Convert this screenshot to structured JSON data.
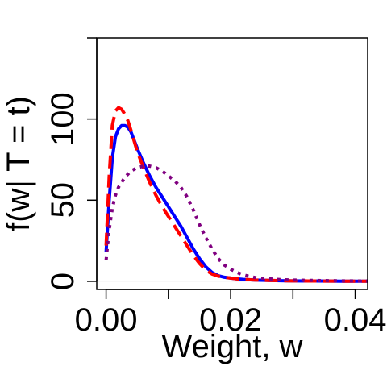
{
  "chart_data": {
    "type": "line",
    "xlabel": "Weight, w",
    "ylabel": "f(w| T = t)",
    "xlim": [
      -0.0015,
      0.042
    ],
    "ylim": [
      -5,
      150
    ],
    "x_ticks": [
      0.0,
      0.01,
      0.02,
      0.03,
      0.04
    ],
    "x_tick_labels": [
      "0.00",
      "",
      "0.02",
      "",
      "0.04"
    ],
    "y_ticks": [
      0,
      50,
      100,
      150
    ],
    "y_tick_labels": [
      "0",
      "50",
      "100",
      ""
    ],
    "grid": false,
    "legend": "none",
    "series": [
      {
        "color": "#0000ff",
        "dash": "solid",
        "x": [
          0.0,
          0.0005,
          0.001,
          0.0015,
          0.002,
          0.0025,
          0.003,
          0.0035,
          0.004,
          0.005,
          0.006,
          0.007,
          0.008,
          0.009,
          0.01,
          0.011,
          0.012,
          0.013,
          0.014,
          0.015,
          0.016,
          0.017,
          0.018,
          0.019,
          0.02,
          0.021,
          0.022,
          0.024,
          0.026,
          0.028,
          0.03,
          0.034,
          0.038,
          0.042
        ],
        "y": [
          18,
          50,
          76,
          89,
          94,
          96,
          96,
          95,
          92,
          82,
          73,
          65,
          58,
          52,
          46,
          40,
          34,
          27,
          20,
          14,
          9,
          5.5,
          3.5,
          2.5,
          2,
          1.5,
          1.2,
          0.8,
          0.6,
          0.4,
          0.3,
          0.2,
          0.1,
          0.1
        ]
      },
      {
        "color": "#ff0000",
        "dash": "long-dash",
        "x": [
          0.0,
          0.0005,
          0.001,
          0.0015,
          0.002,
          0.0025,
          0.003,
          0.0035,
          0.004,
          0.005,
          0.006,
          0.007,
          0.008,
          0.009,
          0.01,
          0.011,
          0.012,
          0.013,
          0.014,
          0.015,
          0.016,
          0.017,
          0.018,
          0.019,
          0.02,
          0.021,
          0.022,
          0.024,
          0.026,
          0.028,
          0.03,
          0.034,
          0.038,
          0.042
        ],
        "y": [
          22,
          65,
          96,
          105,
          107,
          106,
          103,
          99,
          93,
          80,
          70,
          61,
          53,
          46,
          40,
          34,
          28,
          22,
          16,
          11,
          7,
          4.5,
          3.2,
          2.5,
          2,
          1.5,
          1.2,
          0.8,
          0.6,
          0.4,
          0.3,
          0.2,
          0.1,
          0.1
        ]
      },
      {
        "color": "#800080",
        "dash": "dotted",
        "x": [
          0.0,
          0.0005,
          0.001,
          0.0015,
          0.002,
          0.003,
          0.004,
          0.005,
          0.006,
          0.007,
          0.008,
          0.009,
          0.01,
          0.011,
          0.012,
          0.013,
          0.014,
          0.015,
          0.016,
          0.017,
          0.018,
          0.019,
          0.02,
          0.021,
          0.022,
          0.023,
          0.024,
          0.026,
          0.028,
          0.03,
          0.034,
          0.038,
          0.042
        ],
        "y": [
          13,
          32,
          45,
          53,
          58,
          64,
          68,
          70,
          71,
          71,
          70,
          68,
          65,
          62,
          58,
          52,
          44,
          35,
          27,
          20,
          14,
          10,
          7.5,
          5.5,
          4,
          3,
          2.3,
          1.6,
          1.1,
          0.8,
          0.5,
          0.3,
          0.2
        ]
      }
    ]
  }
}
